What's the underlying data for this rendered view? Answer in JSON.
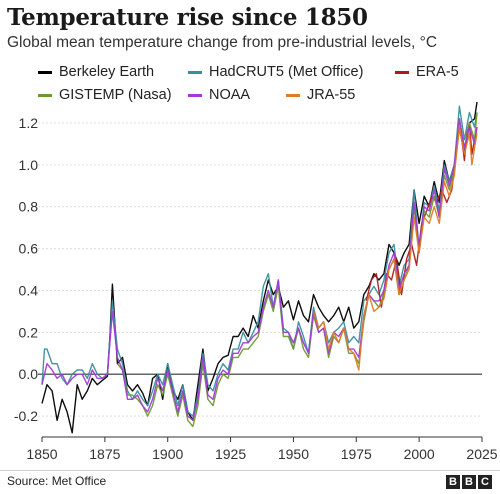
{
  "chart_data": {
    "type": "line",
    "title": "Temperature rise since 1850",
    "subtitle": "Global mean temperature change from pre-industrial levels, °C",
    "xlabel": "",
    "ylabel": "",
    "xlim": [
      1850,
      2025
    ],
    "ylim": [
      -0.3,
      1.3
    ],
    "x_ticks": [
      1850,
      1875,
      1900,
      1925,
      1950,
      1975,
      2000,
      2025
    ],
    "y_ticks": [
      -0.2,
      0.0,
      0.2,
      0.4,
      0.6,
      0.8,
      1.0,
      1.2
    ],
    "x_tick_labels": [
      "1850",
      "1875",
      "1900",
      "1925",
      "1950",
      "1975",
      "2000",
      "2025"
    ],
    "y_tick_labels": [
      "-0.2",
      "0.0",
      "0.2",
      "0.4",
      "0.6",
      "0.8",
      "1.0",
      "1.2"
    ],
    "grid": "horizontal",
    "legend_position": "top",
    "series": [
      {
        "name": "Berkeley Earth",
        "color": "#000000",
        "x": [
          1850,
          1852,
          1854,
          1856,
          1858,
          1860,
          1862,
          1864,
          1866,
          1868,
          1870,
          1872,
          1874,
          1876,
          1877,
          1878,
          1880,
          1882,
          1884,
          1886,
          1888,
          1890,
          1892,
          1894,
          1896,
          1898,
          1900,
          1902,
          1904,
          1906,
          1908,
          1910,
          1912,
          1914,
          1916,
          1918,
          1920,
          1922,
          1924,
          1926,
          1928,
          1930,
          1932,
          1934,
          1936,
          1938,
          1940,
          1942,
          1944,
          1946,
          1948,
          1950,
          1952,
          1954,
          1956,
          1958,
          1960,
          1962,
          1964,
          1966,
          1968,
          1970,
          1972,
          1974,
          1976,
          1978,
          1980,
          1982,
          1984,
          1986,
          1988,
          1990,
          1992,
          1994,
          1996,
          1998,
          2000,
          2002,
          2004,
          2006,
          2008,
          2010,
          2012,
          2014,
          2016,
          2018,
          2020,
          2022,
          2023
        ],
        "y": [
          -0.14,
          -0.05,
          -0.08,
          -0.22,
          -0.12,
          -0.18,
          -0.28,
          -0.05,
          -0.12,
          -0.08,
          -0.02,
          -0.05,
          -0.03,
          -0.01,
          0.18,
          0.43,
          0.05,
          0.08,
          -0.05,
          -0.08,
          -0.05,
          -0.09,
          -0.15,
          -0.02,
          0.0,
          -0.12,
          0.05,
          -0.08,
          -0.12,
          -0.05,
          -0.18,
          -0.22,
          -0.05,
          0.12,
          -0.08,
          -0.02,
          0.05,
          0.08,
          0.09,
          0.18,
          0.18,
          0.22,
          0.18,
          0.28,
          0.22,
          0.35,
          0.45,
          0.38,
          0.42,
          0.32,
          0.35,
          0.26,
          0.35,
          0.28,
          0.25,
          0.38,
          0.32,
          0.28,
          0.25,
          0.28,
          0.32,
          0.25,
          0.32,
          0.22,
          0.25,
          0.38,
          0.42,
          0.48,
          0.45,
          0.48,
          0.62,
          0.58,
          0.52,
          0.58,
          0.62,
          0.88,
          0.72,
          0.85,
          0.8,
          0.92,
          0.82,
          1.02,
          0.92,
          1.0,
          1.18,
          1.05,
          1.2,
          1.22,
          1.3
        ]
      },
      {
        "name": "HadCRUT5 (Met Office)",
        "color": "#3b8ea0",
        "x": [
          1850,
          1851,
          1852,
          1854,
          1856,
          1858,
          1860,
          1862,
          1864,
          1866,
          1868,
          1870,
          1872,
          1874,
          1876,
          1878,
          1880,
          1882,
          1884,
          1886,
          1888,
          1890,
          1892,
          1894,
          1896,
          1898,
          1900,
          1902,
          1904,
          1906,
          1908,
          1910,
          1912,
          1914,
          1916,
          1918,
          1920,
          1922,
          1924,
          1926,
          1928,
          1930,
          1932,
          1934,
          1936,
          1938,
          1940,
          1942,
          1944,
          1946,
          1948,
          1950,
          1952,
          1954,
          1956,
          1958,
          1960,
          1962,
          1964,
          1966,
          1968,
          1970,
          1972,
          1974,
          1976,
          1978,
          1980,
          1982,
          1984,
          1986,
          1988,
          1990,
          1992,
          1994,
          1996,
          1998,
          2000,
          2002,
          2004,
          2006,
          2008,
          2010,
          2012,
          2014,
          2016,
          2018,
          2020,
          2022,
          2023
        ],
        "y": [
          -0.05,
          0.12,
          0.12,
          0.05,
          0.05,
          -0.02,
          -0.05,
          0.0,
          0.02,
          0.02,
          -0.02,
          0.05,
          0.0,
          -0.02,
          0.0,
          0.35,
          0.12,
          0.05,
          -0.08,
          -0.12,
          -0.08,
          -0.12,
          -0.15,
          -0.08,
          0.0,
          -0.05,
          0.05,
          -0.05,
          -0.15,
          -0.05,
          -0.18,
          -0.2,
          -0.1,
          0.1,
          -0.05,
          -0.08,
          0.0,
          0.05,
          0.02,
          0.12,
          0.12,
          0.2,
          0.15,
          0.2,
          0.25,
          0.42,
          0.48,
          0.32,
          0.45,
          0.22,
          0.2,
          0.12,
          0.25,
          0.18,
          0.1,
          0.32,
          0.22,
          0.25,
          0.15,
          0.2,
          0.22,
          0.25,
          0.15,
          0.18,
          0.15,
          0.35,
          0.38,
          0.42,
          0.38,
          0.45,
          0.58,
          0.62,
          0.42,
          0.52,
          0.55,
          0.88,
          0.6,
          0.82,
          0.8,
          0.9,
          0.78,
          1.0,
          0.92,
          1.0,
          1.28,
          1.12,
          1.25,
          1.18,
          1.25
        ]
      },
      {
        "name": "ERA-5",
        "color": "#b0191a",
        "x": [
          1979,
          1981,
          1983,
          1985,
          1987,
          1989,
          1991,
          1993,
          1995,
          1997,
          1999,
          2001,
          2003,
          2005,
          2007,
          2009,
          2011,
          2013,
          2015,
          2016,
          2017,
          2018,
          2019,
          2020,
          2021,
          2022,
          2023
        ],
        "y": [
          0.35,
          0.45,
          0.48,
          0.32,
          0.48,
          0.45,
          0.55,
          0.38,
          0.55,
          0.62,
          0.52,
          0.72,
          0.78,
          0.85,
          0.82,
          0.88,
          0.82,
          0.88,
          1.08,
          1.18,
          1.12,
          1.02,
          1.15,
          1.2,
          1.05,
          1.12,
          1.18
        ]
      },
      {
        "name": "GISTEMP (Nasa)",
        "color": "#6d9a2e",
        "x": [
          1880,
          1882,
          1884,
          1886,
          1888,
          1890,
          1892,
          1894,
          1896,
          1898,
          1900,
          1902,
          1904,
          1906,
          1908,
          1910,
          1912,
          1914,
          1916,
          1918,
          1920,
          1922,
          1924,
          1926,
          1928,
          1930,
          1932,
          1934,
          1936,
          1938,
          1940,
          1942,
          1944,
          1946,
          1948,
          1950,
          1952,
          1954,
          1956,
          1958,
          1960,
          1962,
          1964,
          1966,
          1968,
          1970,
          1972,
          1974,
          1976,
          1978,
          1980,
          1982,
          1984,
          1986,
          1988,
          1990,
          1992,
          1994,
          1996,
          1998,
          2000,
          2002,
          2004,
          2006,
          2008,
          2010,
          2012,
          2014,
          2016,
          2018,
          2020,
          2022,
          2023
        ],
        "y": [
          0.05,
          0.02,
          -0.1,
          -0.1,
          -0.12,
          -0.15,
          -0.2,
          -0.15,
          -0.05,
          -0.1,
          0.0,
          -0.1,
          -0.2,
          -0.1,
          -0.22,
          -0.25,
          -0.15,
          0.05,
          -0.12,
          -0.15,
          -0.05,
          0.0,
          -0.02,
          0.08,
          0.08,
          0.12,
          0.12,
          0.15,
          0.18,
          0.3,
          0.38,
          0.3,
          0.42,
          0.18,
          0.18,
          0.12,
          0.22,
          0.12,
          0.08,
          0.28,
          0.2,
          0.22,
          0.08,
          0.18,
          0.15,
          0.22,
          0.1,
          0.1,
          0.05,
          0.25,
          0.38,
          0.35,
          0.32,
          0.38,
          0.5,
          0.55,
          0.38,
          0.45,
          0.52,
          0.8,
          0.58,
          0.78,
          0.75,
          0.85,
          0.75,
          0.95,
          0.88,
          0.98,
          1.22,
          1.08,
          1.2,
          1.12,
          1.25
        ]
      },
      {
        "name": "NOAA",
        "color": "#a23ad9",
        "x": [
          1850,
          1852,
          1854,
          1856,
          1858,
          1860,
          1862,
          1864,
          1866,
          1868,
          1870,
          1872,
          1874,
          1876,
          1878,
          1880,
          1882,
          1884,
          1886,
          1888,
          1890,
          1892,
          1894,
          1896,
          1898,
          1900,
          1902,
          1904,
          1906,
          1908,
          1910,
          1912,
          1914,
          1916,
          1918,
          1920,
          1922,
          1924,
          1926,
          1928,
          1930,
          1932,
          1934,
          1936,
          1938,
          1940,
          1942,
          1944,
          1946,
          1948,
          1950,
          1952,
          1954,
          1956,
          1958,
          1960,
          1962,
          1964,
          1966,
          1968,
          1970,
          1972,
          1974,
          1976,
          1978,
          1980,
          1982,
          1984,
          1986,
          1988,
          1990,
          1992,
          1994,
          1996,
          1998,
          2000,
          2002,
          2004,
          2006,
          2008,
          2010,
          2012,
          2014,
          2016,
          2018,
          2020,
          2022,
          2023
        ],
        "y": [
          -0.05,
          0.05,
          0.02,
          -0.02,
          0.0,
          -0.05,
          -0.02,
          0.0,
          0.0,
          -0.05,
          0.02,
          -0.02,
          -0.02,
          0.0,
          0.3,
          0.08,
          0.02,
          -0.12,
          -0.12,
          -0.1,
          -0.15,
          -0.18,
          -0.12,
          -0.02,
          -0.08,
          0.02,
          -0.08,
          -0.18,
          -0.08,
          -0.2,
          -0.22,
          -0.12,
          0.08,
          -0.1,
          -0.12,
          -0.02,
          0.02,
          0.0,
          0.1,
          0.1,
          0.15,
          0.15,
          0.18,
          0.2,
          0.32,
          0.4,
          0.32,
          0.45,
          0.2,
          0.2,
          0.15,
          0.22,
          0.15,
          0.1,
          0.3,
          0.2,
          0.22,
          0.1,
          0.2,
          0.18,
          0.22,
          0.12,
          0.12,
          0.08,
          0.28,
          0.38,
          0.35,
          0.35,
          0.4,
          0.52,
          0.58,
          0.4,
          0.48,
          0.52,
          0.82,
          0.6,
          0.8,
          0.78,
          0.88,
          0.75,
          0.98,
          0.9,
          1.0,
          1.22,
          1.08,
          1.18,
          1.1,
          1.18
        ]
      },
      {
        "name": "JRA-55",
        "color": "#e07b26",
        "x": [
          1958,
          1960,
          1962,
          1964,
          1966,
          1968,
          1970,
          1972,
          1974,
          1976,
          1978,
          1980,
          1982,
          1984,
          1986,
          1988,
          1990,
          1992,
          1994,
          1996,
          1998,
          2000,
          2002,
          2004,
          2006,
          2008,
          2010,
          2012,
          2014,
          2016,
          2018,
          2020,
          2021,
          2022,
          2023
        ],
        "y": [
          0.3,
          0.22,
          0.25,
          0.12,
          0.2,
          0.15,
          0.22,
          0.12,
          0.1,
          0.02,
          0.28,
          0.38,
          0.3,
          0.32,
          0.36,
          0.5,
          0.55,
          0.38,
          0.45,
          0.5,
          0.75,
          0.58,
          0.75,
          0.72,
          0.8,
          0.72,
          0.92,
          0.85,
          0.95,
          1.18,
          1.05,
          1.15,
          1.0,
          1.08,
          1.15
        ]
      }
    ],
    "source": "Source: Met Office",
    "logo_text": "BBC"
  }
}
